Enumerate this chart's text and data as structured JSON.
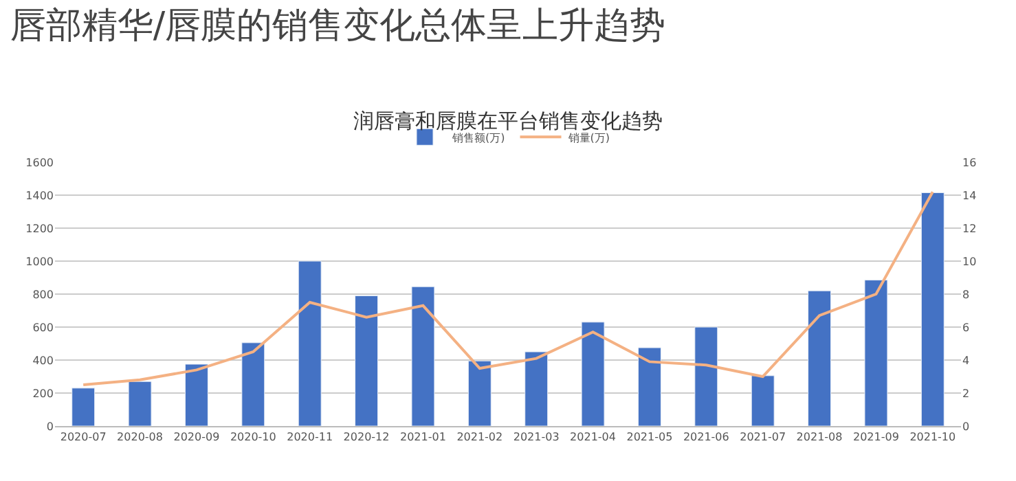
{
  "chart_data": {
    "type": "bar",
    "title": "唇部精华/唇膜的销售变化总体呈上升趋势",
    "subtitle": "润唇膏和唇膜在平台销售变化趋势",
    "categories": [
      "2020-07",
      "2020-08",
      "2020-09",
      "2020-10",
      "2020-11",
      "2020-12",
      "2021-01",
      "2021-02",
      "2021-03",
      "2021-04",
      "2021-05",
      "2021-06",
      "2021-07",
      "2021-08",
      "2021-09",
      "2021-10"
    ],
    "series": [
      {
        "name": "销售额(万)",
        "color": "#4472c4",
        "values": [
          230,
          270,
          375,
          505,
          1000,
          790,
          845,
          395,
          450,
          630,
          475,
          600,
          305,
          820,
          885,
          1415
        ]
      },
      {
        "name": "销量(万)",
        "color": "#f4b183",
        "type": "line",
        "axis": "y2",
        "values": [
          2.5,
          2.8,
          3.4,
          4.5,
          7.5,
          6.6,
          7.3,
          3.5,
          4.1,
          5.7,
          3.9,
          3.7,
          3.0,
          6.7,
          8.0,
          14.2
        ]
      }
    ],
    "ylim": [
      0,
      1600
    ],
    "yticks": [
      0,
      200,
      400,
      600,
      800,
      1000,
      1200,
      1400,
      1600
    ],
    "y2lim": [
      0,
      16
    ],
    "y2ticks": [
      0,
      2,
      4,
      6,
      8,
      10,
      12,
      14,
      16
    ],
    "grid": "y",
    "legend": "top",
    "marker": "none"
  }
}
